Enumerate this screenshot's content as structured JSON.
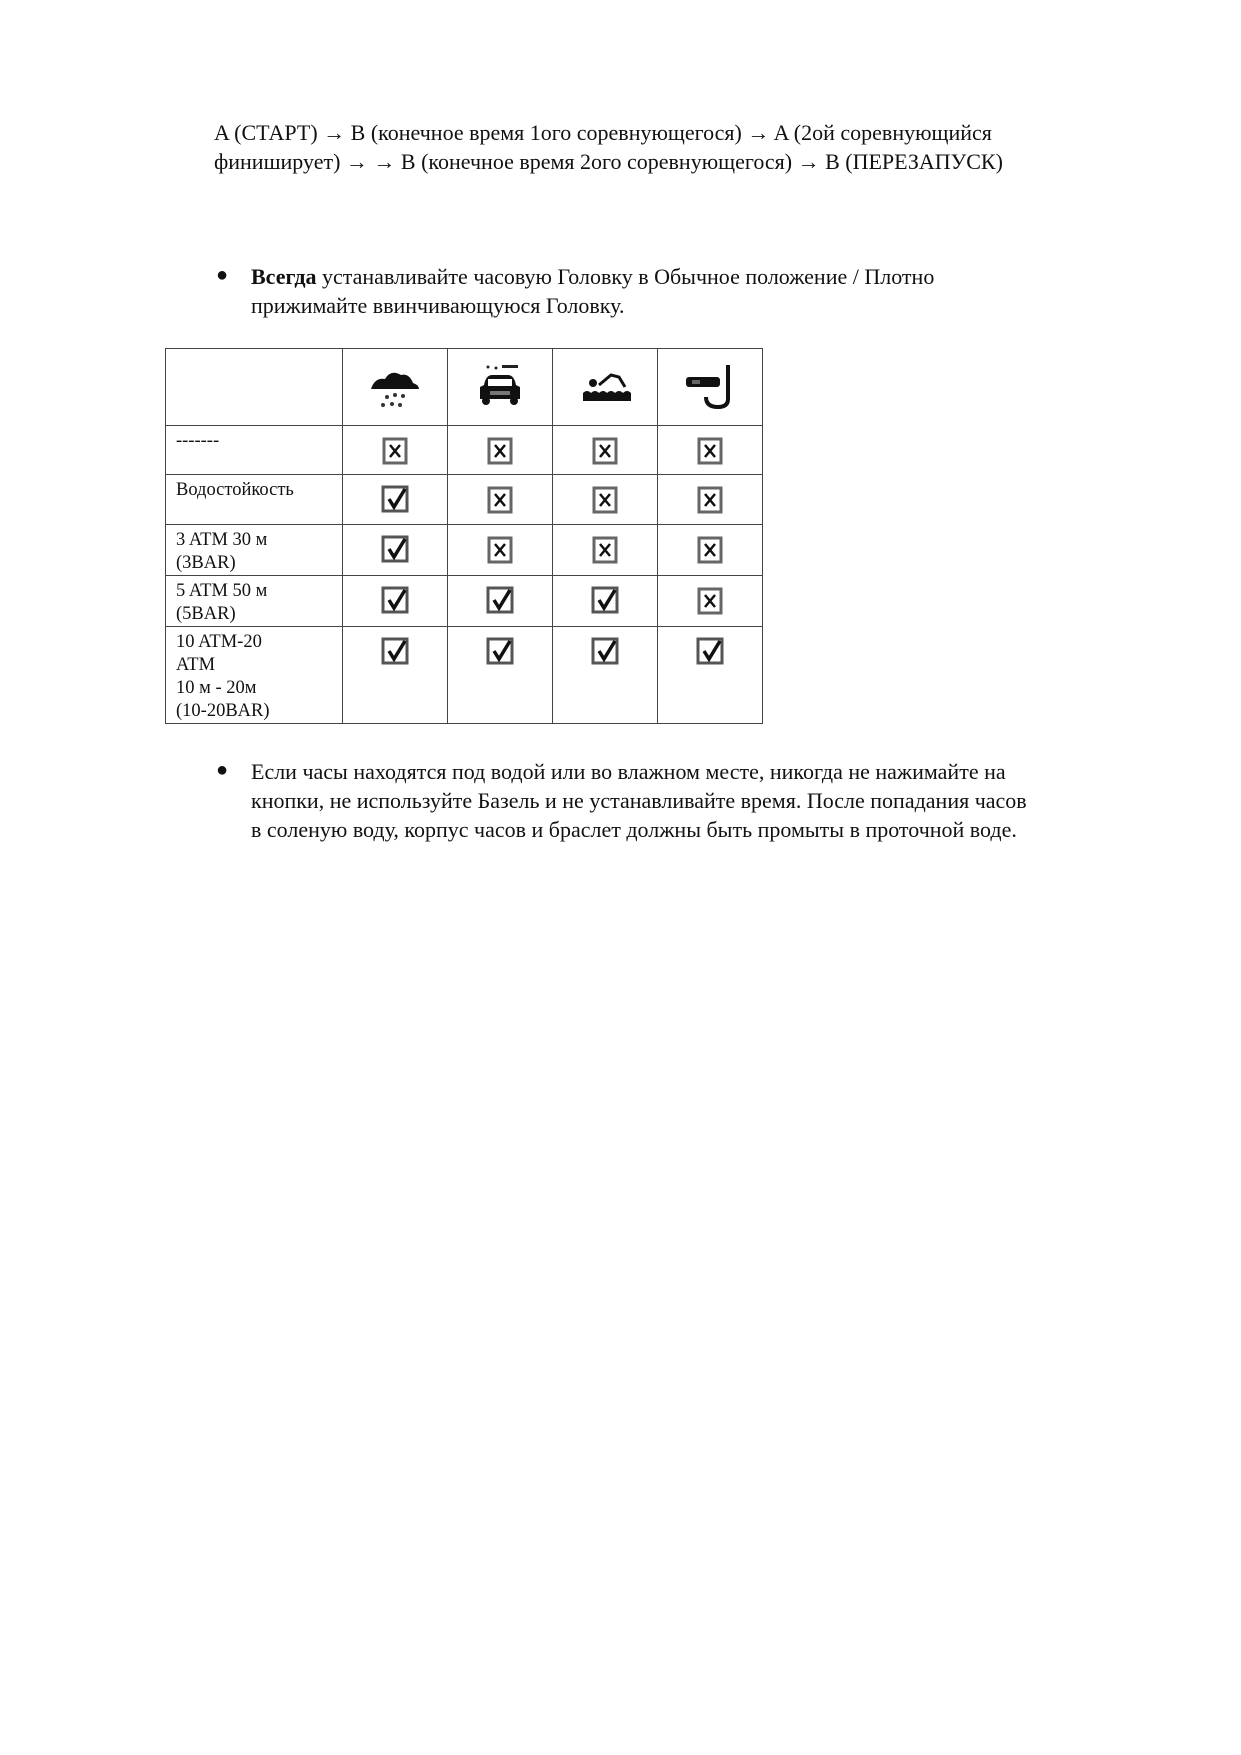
{
  "intro": {
    "line1": "A (СТАРТ) → B (конечное время 1ого соревнующегося) → A (2ой соревнующийся",
    "line2": "финиширует) → → B (конечное время 2ого соревнующегося) → B (ПЕРЕЗАПУСК)"
  },
  "bullet1": {
    "bold": "Всегда",
    "line1_rest": " устанавливайте часовую Головку в Обычное положение  / Плотно",
    "line2": "прижимайте ввинчивающуюся Головку."
  },
  "table": {
    "header_icons": [
      "rain-icon",
      "car-wash-icon",
      "swimming-icon",
      "snorkel-icon"
    ],
    "rows": [
      {
        "label": "-------",
        "values": [
          "no",
          "no",
          "no",
          "no"
        ]
      },
      {
        "label": "Водостойкость",
        "values": [
          "yes",
          "no",
          "no",
          "no"
        ]
      },
      {
        "label": "3 ATM 30 м\n(3BAR)",
        "values": [
          "yes",
          "no",
          "no",
          "no"
        ]
      },
      {
        "label": "5 ATM 50 м\n(5BAR)",
        "values": [
          "yes",
          "yes",
          "yes",
          "no"
        ]
      },
      {
        "label": "10 ATM-20\nATM\n10 м - 20м\n(10-20BAR)",
        "values": [
          "yes",
          "yes",
          "yes",
          "yes"
        ]
      }
    ]
  },
  "bullet2": {
    "line1": "Если часы находятся под водой или во влажном месте, никогда не нажимайте на",
    "line2": "кнопки, не используйте Базель и не устанавливайте время. После попадания часов",
    "line3": "в соленую воду, корпус часов и браслет должны быть промыты в проточной воде."
  }
}
